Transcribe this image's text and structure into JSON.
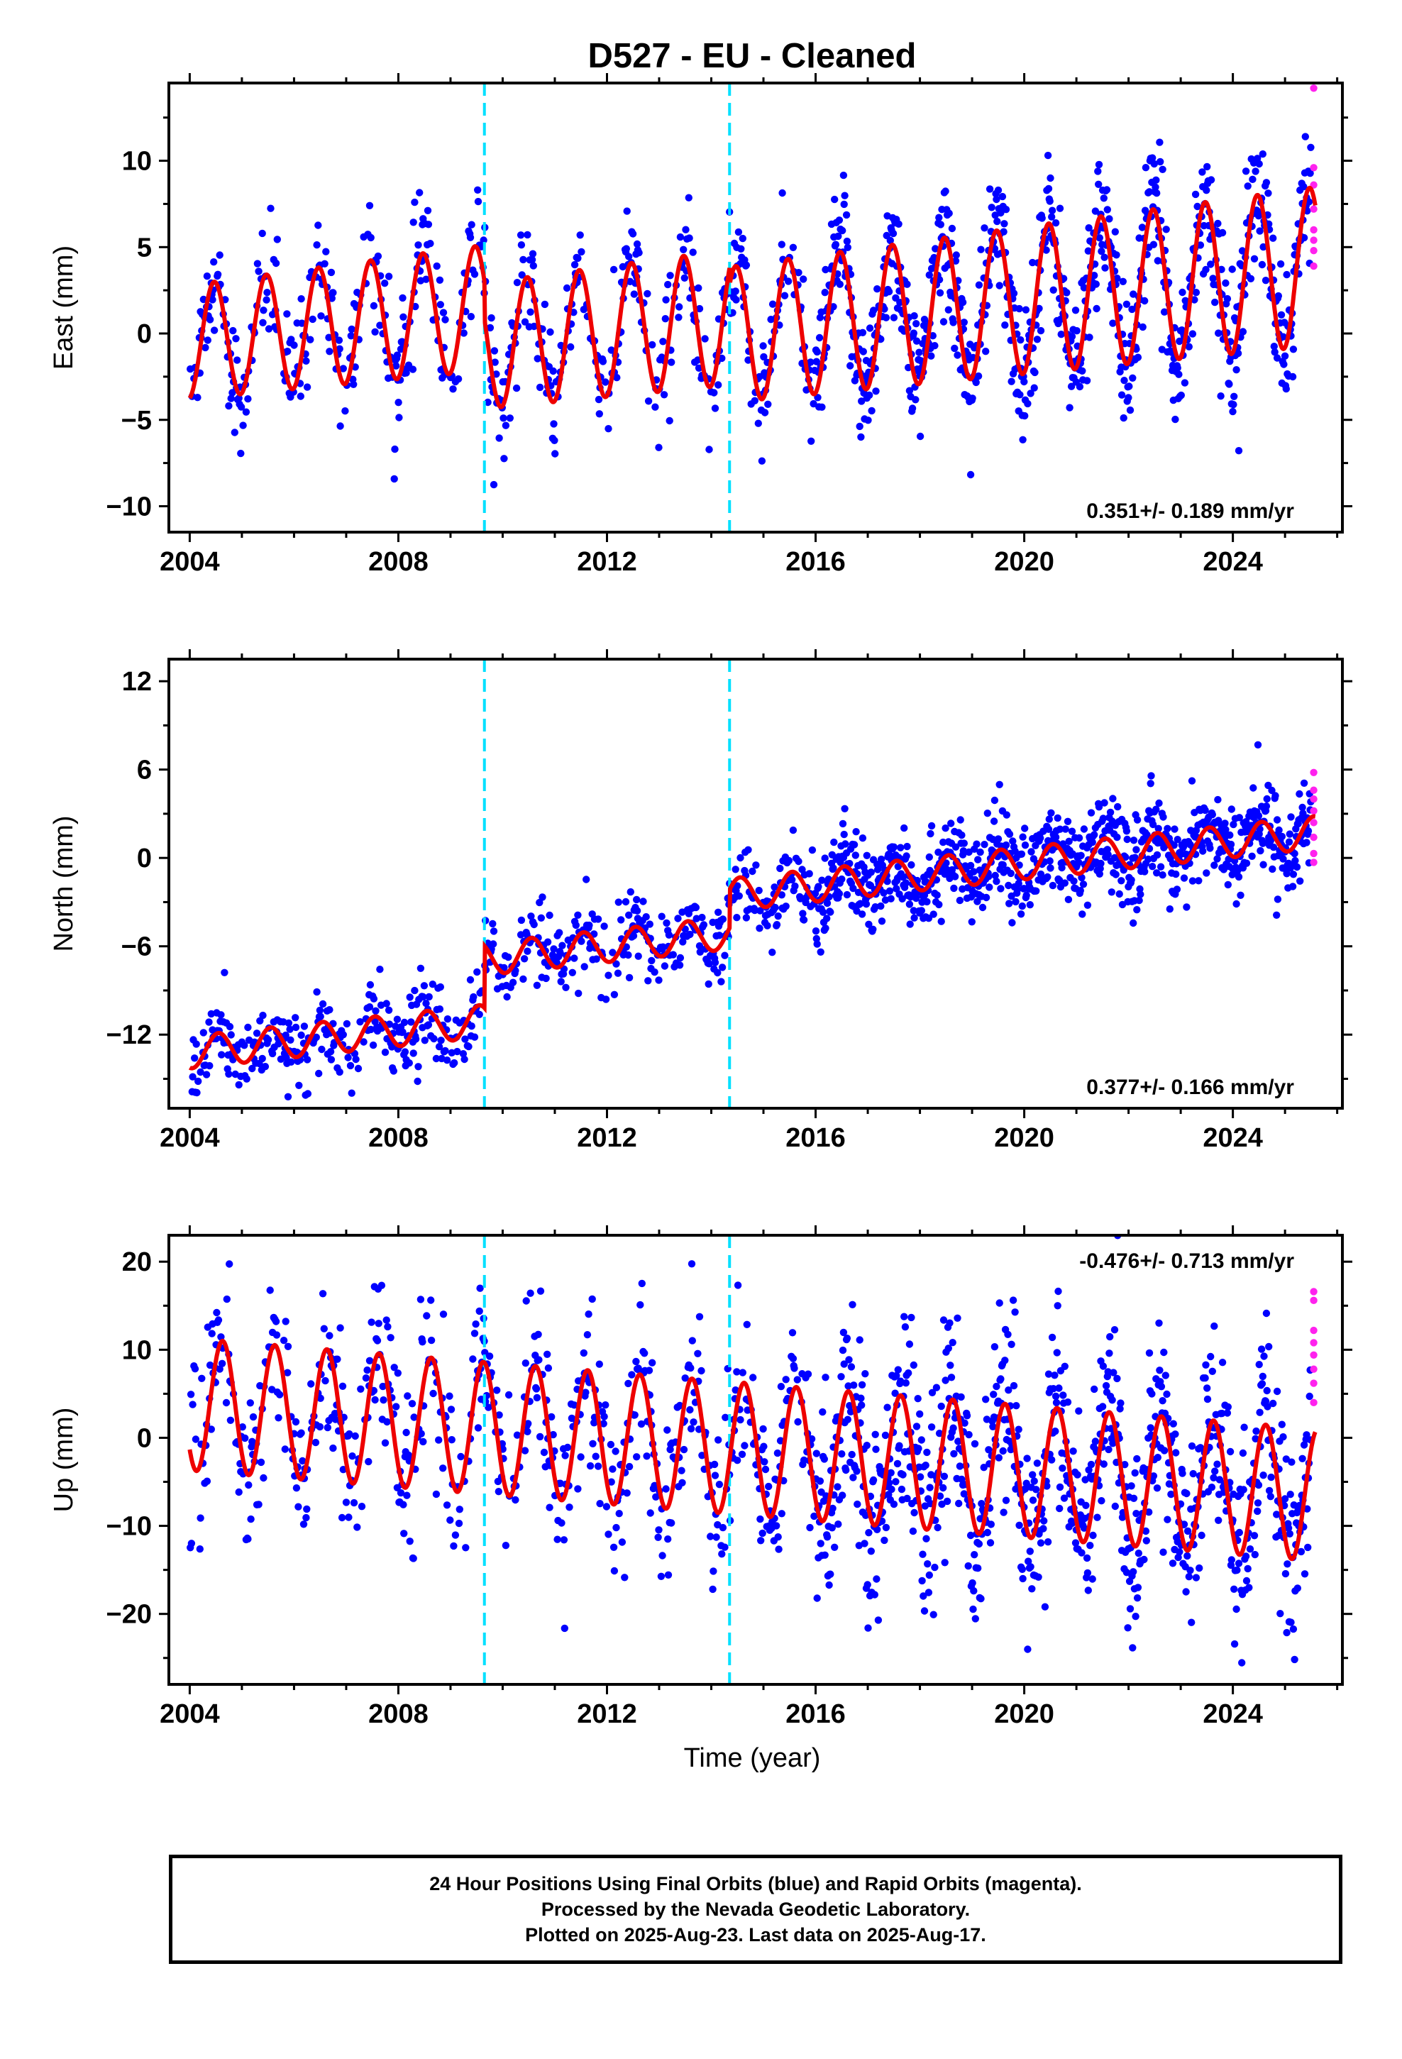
{
  "figure": {
    "title": "D527  - EU - Cleaned",
    "xlabel": "Time (year)",
    "footer_lines": [
      "24 Hour Positions Using Final Orbits (blue) and Rapid Orbits (magenta).",
      "Processed by the Nevada Geodetic Laboratory.",
      "Plotted on 2025-Aug-23. Last data on 2025-Aug-17."
    ]
  },
  "colors": {
    "final": "#0000ff",
    "rapid": "#ff22ee",
    "model": "#ee0000",
    "steps": "#00e0ff"
  },
  "chart_data": [
    {
      "type": "scatter",
      "ylabel": "East (mm)",
      "xlim": [
        2003.6,
        2026.1
      ],
      "ylim": [
        -11.5,
        14.5
      ],
      "xticks": [
        2004,
        2008,
        2012,
        2016,
        2020,
        2024
      ],
      "yticks": [
        -10,
        -5,
        0,
        5,
        10
      ],
      "steps": [
        2009.65,
        2014.35
      ],
      "rate": "0.351+/- 0.189 mm/yr",
      "rate_position": "bottom-right",
      "model": {
        "trend": 0.351,
        "offsets": [
          0,
          -2.2,
          -1.0
        ],
        "base": -0.5,
        "amplitude": 3.3,
        "amplitude_growth": 0.06,
        "phase": 0.22,
        "pre": 0.0
      },
      "noise": 1.7,
      "rapid_points": [
        [
          2025.55,
          14.2
        ],
        [
          2025.55,
          9.6
        ],
        [
          2025.55,
          8.6
        ],
        [
          2025.55,
          7.2
        ],
        [
          2025.55,
          6.0
        ],
        [
          2025.55,
          5.4
        ],
        [
          2025.55,
          4.8
        ],
        [
          2025.55,
          3.9
        ]
      ]
    },
    {
      "type": "scatter",
      "ylabel": "North (mm)",
      "xlim": [
        2003.6,
        2026.1
      ],
      "ylim": [
        -17,
        13.5
      ],
      "xticks": [
        2004,
        2008,
        2012,
        2016,
        2020,
        2024
      ],
      "yticks": [
        -12,
        -6,
        0,
        6,
        12
      ],
      "steps": [
        2009.65,
        2014.35
      ],
      "rate": "0.377+/- 0.166 mm/yr",
      "rate_position": "bottom-right",
      "model": {
        "trend": 0.377,
        "offsets": [
          0,
          4.2,
          2.6
        ],
        "base": -13.2,
        "amplitude": 1.1,
        "amplitude_growth": 0.0,
        "phase": 0.3,
        "pre": 0.0
      },
      "noise": 1.3,
      "rapid_points": [
        [
          2025.55,
          5.8
        ],
        [
          2025.55,
          4.6
        ],
        [
          2025.55,
          4.0
        ],
        [
          2025.55,
          3.2
        ],
        [
          2025.55,
          2.4
        ],
        [
          2025.55,
          1.4
        ],
        [
          2025.55,
          0.3
        ],
        [
          2025.55,
          -0.3
        ]
      ]
    },
    {
      "type": "scatter",
      "ylabel": "Up (mm)",
      "xlim": [
        2003.6,
        2026.1
      ],
      "ylim": [
        -28,
        23
      ],
      "xticks": [
        2004,
        2008,
        2012,
        2016,
        2020,
        2024
      ],
      "yticks": [
        -20,
        -10,
        0,
        10,
        20
      ],
      "steps": [
        2009.65,
        2014.35
      ],
      "rate": "-0.476+/- 0.713 mm/yr",
      "rate_position": "top-right",
      "model": {
        "trend": -0.476,
        "offsets": [
          0,
          0,
          0
        ],
        "base": 3.8,
        "amplitude": 7.5,
        "amplitude_growth": 0.0,
        "phase": 0.38,
        "pre": 0.0
      },
      "noise": 4.8,
      "rapid_points": [
        [
          2025.55,
          16.6
        ],
        [
          2025.55,
          15.6
        ],
        [
          2025.55,
          12.2
        ],
        [
          2025.55,
          10.8
        ],
        [
          2025.55,
          9.4
        ],
        [
          2025.55,
          7.8
        ],
        [
          2025.55,
          6.2
        ],
        [
          2025.55,
          4.0
        ]
      ]
    }
  ]
}
